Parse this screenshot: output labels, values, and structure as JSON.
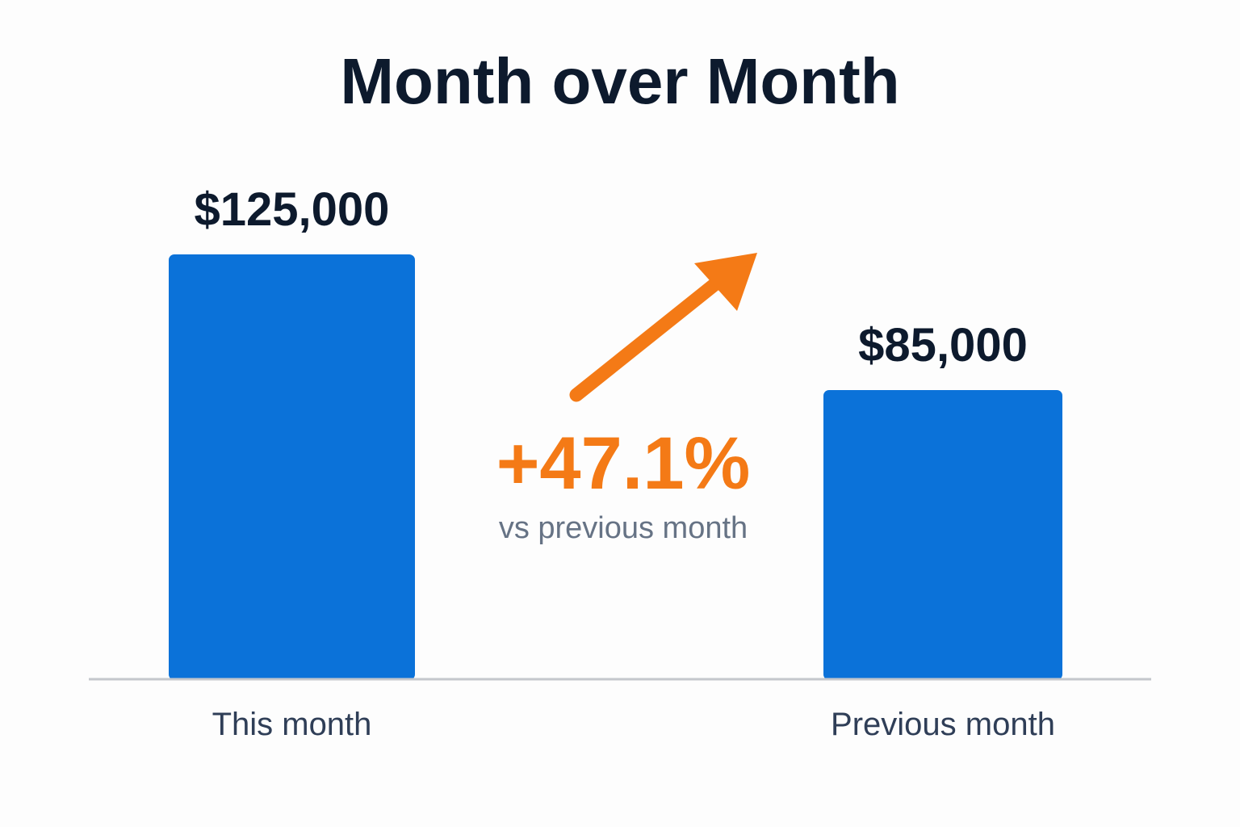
{
  "chart_data": {
    "type": "bar",
    "title": "Month over Month",
    "categories": [
      "This month",
      "Previous month"
    ],
    "values": [
      125000,
      85000
    ],
    "value_labels": [
      "$125,000",
      "$85,000"
    ],
    "ylim": [
      0,
      125000
    ],
    "grid": false,
    "legend": "none",
    "annotation": {
      "change": "+47.1%",
      "caption": "vs previous month"
    }
  },
  "colors": {
    "bar": "#0b72d9",
    "title": "#0d1a2d",
    "value_label": "#0d1a2d",
    "category_label": "#2f3e57",
    "accent": "#f47a16",
    "caption": "#667385",
    "baseline": "#c4c7cc"
  },
  "icons": {
    "trend": "arrow-up-right-icon"
  }
}
